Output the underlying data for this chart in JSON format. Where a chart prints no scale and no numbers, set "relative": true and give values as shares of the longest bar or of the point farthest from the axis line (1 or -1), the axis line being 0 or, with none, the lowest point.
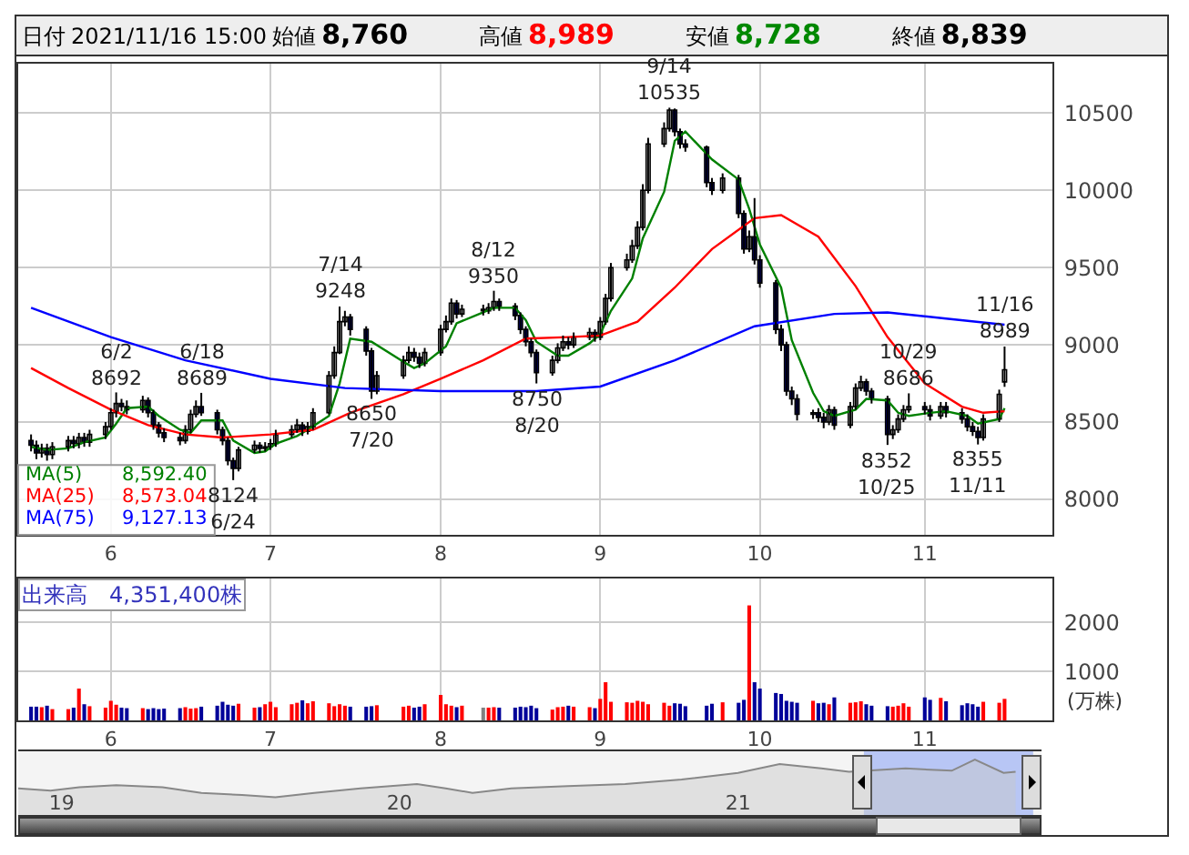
{
  "chart_data": [
    {
      "type": "candlestick",
      "legend": "bottom left",
      "grid": true,
      "colors": [
        "#000099",
        "#000099",
        "#ffffff",
        "#000099",
        "#ffffff",
        "#ffffff",
        "#000099",
        "#ffffff",
        "#000099",
        "#ffffff",
        "#ffffff",
        "#ffffff",
        "#ffffff",
        "#000099",
        "#000099",
        "#ffffff",
        "#000099",
        "#000099",
        "#000099",
        "#000099",
        "#000099",
        "#ffffff",
        "#ffffff",
        "#ffffff",
        "#000099",
        "#000099",
        "#000099",
        "#000099",
        "#000099",
        "#ffffff",
        "#ffffff",
        "#000099",
        "#ffffff",
        "#ffffff",
        "#ffffff",
        "#ffffff",
        "#ffffff",
        "#000099",
        "#ffffff",
        "#ffffff",
        "#ffffff",
        "#ffffff",
        "#ffffff",
        "#ffffff",
        "#000099",
        "#000099",
        "#000099",
        "#ffffff",
        "#ffffff",
        "#ffffff",
        "#000099",
        "#000099",
        "#ffffff",
        "#ffffff",
        "#ffffff",
        "#ffffff",
        "#000099",
        "#ffffff",
        "#000099",
        "#ffffff",
        "#ffffff",
        "#000099",
        "#000099",
        "#000099",
        "#000099",
        "#000099",
        "#000099",
        "#ffffff",
        "#ffffff",
        "#ffffff",
        "#000099",
        "#ffffff",
        "#ffffff",
        "#000099",
        "#ffffff",
        "#ffffff",
        "#ffffff",
        "#ffffff",
        "#ffffff",
        "#ffffff",
        "#ffffff",
        "#ffffff",
        "#ffffff",
        "#ffffff",
        "#000099",
        "#000099",
        "#000099",
        "#000099",
        "#000099",
        "#ffffff",
        "#000099",
        "#000099",
        "#ffffff",
        "#000099",
        "#000099",
        "#000099",
        "#000099",
        "#000099",
        "#000099",
        "#000099",
        "#ffffff",
        "#000099",
        "#000099",
        "#ffffff",
        "#000099",
        "#ffffff",
        "#ffffff",
        "#ffffff",
        "#000099",
        "#000099",
        "#000099",
        "#ffffff",
        "#ffffff",
        "#ffffff",
        "#ffffff",
        "#000099",
        "#000099",
        "#ffffff",
        "#000099",
        "#000099",
        "#000099",
        "#000099",
        "#000099",
        "#ffffff",
        "#ffffff",
        "#ffffff"
      ],
      "x": [
        "2021-05-17",
        "2021-05-18",
        "2021-05-19",
        "2021-05-20",
        "2021-05-21",
        "2021-05-24",
        "2021-05-25",
        "2021-05-26",
        "2021-05-27",
        "2021-05-28",
        "2021-05-31",
        "2021-06-01",
        "2021-06-02",
        "2021-06-03",
        "2021-06-04",
        "2021-06-07",
        "2021-06-08",
        "2021-06-09",
        "2021-06-10",
        "2021-06-11",
        "2021-06-14",
        "2021-06-15",
        "2021-06-16",
        "2021-06-17",
        "2021-06-18",
        "2021-06-21",
        "2021-06-22",
        "2021-06-23",
        "2021-06-24",
        "2021-06-25",
        "2021-06-28",
        "2021-06-29",
        "2021-06-30",
        "2021-07-01",
        "2021-07-02",
        "2021-07-05",
        "2021-07-06",
        "2021-07-07",
        "2021-07-08",
        "2021-07-09",
        "2021-07-12",
        "2021-07-13",
        "2021-07-14",
        "2021-07-15",
        "2021-07-16",
        "2021-07-19",
        "2021-07-20",
        "2021-07-21",
        "2021-07-26",
        "2021-07-27",
        "2021-07-28",
        "2021-07-29",
        "2021-07-30",
        "2021-08-02",
        "2021-08-03",
        "2021-08-04",
        "2021-08-05",
        "2021-08-06",
        "2021-08-10",
        "2021-08-11",
        "2021-08-12",
        "2021-08-13",
        "2021-08-16",
        "2021-08-17",
        "2021-08-18",
        "2021-08-19",
        "2021-08-20",
        "2021-08-23",
        "2021-08-24",
        "2021-08-25",
        "2021-08-26",
        "2021-08-27",
        "2021-08-30",
        "2021-08-31",
        "2021-09-01",
        "2021-09-02",
        "2021-09-03",
        "2021-09-06",
        "2021-09-07",
        "2021-09-08",
        "2021-09-09",
        "2021-09-10",
        "2021-09-13",
        "2021-09-14",
        "2021-09-15",
        "2021-09-16",
        "2021-09-17",
        "2021-09-21",
        "2021-09-22",
        "2021-09-24",
        "2021-09-27",
        "2021-09-28",
        "2021-09-29",
        "2021-09-30",
        "2021-10-01",
        "2021-10-04",
        "2021-10-05",
        "2021-10-06",
        "2021-10-07",
        "2021-10-08",
        "2021-10-11",
        "2021-10-12",
        "2021-10-13",
        "2021-10-14",
        "2021-10-15",
        "2021-10-18",
        "2021-10-19",
        "2021-10-20",
        "2021-10-21",
        "2021-10-22",
        "2021-10-25",
        "2021-10-26",
        "2021-10-27",
        "2021-10-28",
        "2021-10-29",
        "2021-11-01",
        "2021-11-02",
        "2021-11-04",
        "2021-11-05",
        "2021-11-08",
        "2021-11-09",
        "2021-11-10",
        "2021-11-11",
        "2021-11-12",
        "2021-11-15",
        "2021-11-16"
      ],
      "ohlc": [
        [
          8380,
          8420,
          8310,
          8350
        ],
        [
          8350,
          8380,
          8260,
          8300
        ],
        [
          8300,
          8360,
          8270,
          8330
        ],
        [
          8330,
          8360,
          8250,
          8290
        ],
        [
          8290,
          8370,
          8260,
          8340
        ],
        [
          8340,
          8410,
          8310,
          8380
        ],
        [
          8380,
          8410,
          8330,
          8360
        ],
        [
          8360,
          8430,
          8330,
          8400
        ],
        [
          8400,
          8430,
          8340,
          8370
        ],
        [
          8370,
          8450,
          8340,
          8420
        ],
        [
          8420,
          8500,
          8390,
          8470
        ],
        [
          8470,
          8590,
          8450,
          8560
        ],
        [
          8560,
          8692,
          8530,
          8620
        ],
        [
          8620,
          8650,
          8570,
          8600
        ],
        [
          8600,
          8640,
          8550,
          8580
        ],
        [
          8580,
          8670,
          8560,
          8640
        ],
        [
          8640,
          8660,
          8530,
          8560
        ],
        [
          8560,
          8580,
          8450,
          8480
        ],
        [
          8480,
          8500,
          8400,
          8430
        ],
        [
          8430,
          8460,
          8370,
          8400
        ],
        [
          8400,
          8430,
          8350,
          8380
        ],
        [
          8380,
          8480,
          8360,
          8450
        ],
        [
          8450,
          8580,
          8430,
          8550
        ],
        [
          8550,
          8640,
          8530,
          8600
        ],
        [
          8600,
          8689,
          8540,
          8560
        ],
        [
          8560,
          8580,
          8420,
          8450
        ],
        [
          8450,
          8470,
          8350,
          8380
        ],
        [
          8380,
          8400,
          8220,
          8250
        ],
        [
          8250,
          8270,
          8124,
          8200
        ],
        [
          8200,
          8340,
          8180,
          8320
        ],
        [
          8320,
          8380,
          8300,
          8350
        ],
        [
          8350,
          8370,
          8300,
          8330
        ],
        [
          8330,
          8370,
          8310,
          8340
        ],
        [
          8340,
          8390,
          8320,
          8360
        ],
        [
          8360,
          8450,
          8340,
          8420
        ],
        [
          8420,
          8480,
          8400,
          8450
        ],
        [
          8450,
          8520,
          8430,
          8480
        ],
        [
          8480,
          8500,
          8410,
          8440
        ],
        [
          8440,
          8500,
          8420,
          8470
        ],
        [
          8470,
          8590,
          8450,
          8560
        ],
        [
          8560,
          8830,
          8550,
          8800
        ],
        [
          8800,
          8990,
          8780,
          8950
        ],
        [
          8950,
          9248,
          8940,
          9150
        ],
        [
          9150,
          9220,
          9120,
          9180
        ],
        [
          9180,
          9200,
          9060,
          9100
        ],
        [
          9100,
          9120,
          8930,
          8960
        ],
        [
          8960,
          8980,
          8650,
          8700
        ],
        [
          8700,
          8830,
          8680,
          8800
        ],
        [
          8800,
          8930,
          8780,
          8900
        ],
        [
          8900,
          8990,
          8880,
          8950
        ],
        [
          8950,
          8980,
          8890,
          8920
        ],
        [
          8920,
          8950,
          8850,
          8880
        ],
        [
          8880,
          8980,
          8860,
          8950
        ],
        [
          8950,
          9130,
          8930,
          9100
        ],
        [
          9100,
          9190,
          9080,
          9150
        ],
        [
          9150,
          9300,
          9130,
          9270
        ],
        [
          9270,
          9290,
          9170,
          9200
        ],
        [
          9200,
          9260,
          9180,
          9230
        ],
        [
          9230,
          9260,
          9190,
          9220
        ],
        [
          9220,
          9270,
          9200,
          9240
        ],
        [
          9240,
          9350,
          9220,
          9280
        ],
        [
          9280,
          9300,
          9220,
          9250
        ],
        [
          9250,
          9270,
          9160,
          9190
        ],
        [
          9190,
          9210,
          9070,
          9100
        ],
        [
          9100,
          9120,
          8990,
          9020
        ],
        [
          9020,
          9040,
          8920,
          8950
        ],
        [
          8950,
          8970,
          8750,
          8820
        ],
        [
          8820,
          8930,
          8800,
          8900
        ],
        [
          8900,
          9010,
          8880,
          8980
        ],
        [
          8980,
          9060,
          8960,
          9020
        ],
        [
          9020,
          9050,
          8970,
          9000
        ],
        [
          9000,
          9080,
          8980,
          9050
        ],
        [
          9050,
          9110,
          9030,
          9080
        ],
        [
          9080,
          9100,
          9020,
          9050
        ],
        [
          9050,
          9180,
          9030,
          9150
        ],
        [
          9150,
          9330,
          9130,
          9300
        ],
        [
          9300,
          9530,
          9280,
          9500
        ],
        [
          9500,
          9590,
          9480,
          9550
        ],
        [
          9550,
          9680,
          9530,
          9640
        ],
        [
          9640,
          9800,
          9620,
          9760
        ],
        [
          9760,
          10040,
          9740,
          10000
        ],
        [
          10000,
          10340,
          9980,
          10300
        ],
        [
          10300,
          10440,
          10280,
          10400
        ],
        [
          10400,
          10535,
          10380,
          10520
        ],
        [
          10520,
          10530,
          10350,
          10380
        ],
        [
          10380,
          10400,
          10270,
          10300
        ],
        [
          10300,
          10330,
          10250,
          10280
        ],
        [
          10280,
          10290,
          10020,
          10050
        ],
        [
          10050,
          10080,
          9970,
          10000
        ],
        [
          10000,
          10110,
          9980,
          10080
        ],
        [
          10080,
          10100,
          9820,
          9850
        ],
        [
          9850,
          9870,
          9590,
          9620
        ],
        [
          9620,
          9740,
          9600,
          9700
        ],
        [
          9700,
          9950,
          9520,
          9550
        ],
        [
          9550,
          9580,
          9370,
          9400
        ],
        [
          9400,
          9420,
          9070,
          9100
        ],
        [
          9100,
          9130,
          8960,
          9000
        ],
        [
          9000,
          9020,
          8670,
          8700
        ],
        [
          8700,
          8730,
          8610,
          8650
        ],
        [
          8650,
          8680,
          8510,
          8550
        ],
        [
          8550,
          8580,
          8520,
          8560
        ],
        [
          8560,
          8590,
          8500,
          8530
        ],
        [
          8530,
          8560,
          8460,
          8500
        ],
        [
          8500,
          8610,
          8480,
          8580
        ],
        [
          8580,
          8600,
          8450,
          8480
        ],
        [
          8480,
          8630,
          8460,
          8600
        ],
        [
          8600,
          8750,
          8580,
          8720
        ],
        [
          8720,
          8800,
          8700,
          8760
        ],
        [
          8760,
          8780,
          8670,
          8700
        ],
        [
          8700,
          8720,
          8620,
          8650
        ],
        [
          8650,
          8670,
          8352,
          8420
        ],
        [
          8420,
          8480,
          8390,
          8450
        ],
        [
          8450,
          8550,
          8430,
          8520
        ],
        [
          8520,
          8610,
          8500,
          8580
        ],
        [
          8580,
          8686,
          8560,
          8600
        ],
        [
          8600,
          8630,
          8550,
          8580
        ],
        [
          8580,
          8610,
          8510,
          8540
        ],
        [
          8540,
          8630,
          8520,
          8600
        ],
        [
          8600,
          8630,
          8530,
          8560
        ],
        [
          8560,
          8590,
          8490,
          8520
        ],
        [
          8520,
          8550,
          8440,
          8470
        ],
        [
          8470,
          8500,
          8410,
          8440
        ],
        [
          8440,
          8470,
          8355,
          8400
        ],
        [
          8400,
          8550,
          8380,
          8520
        ],
        [
          8520,
          8710,
          8500,
          8680
        ],
        [
          8760,
          8989,
          8728,
          8839
        ]
      ],
      "series": [
        {
          "name": "MA(5)",
          "type": "line",
          "color": "#008000",
          "x": [
            "2021-05-17",
            "2021-05-20",
            "2021-05-24",
            "2021-05-27",
            "2021-05-31",
            "2021-06-02",
            "2021-06-04",
            "2021-06-08",
            "2021-06-10",
            "2021-06-14",
            "2021-06-16",
            "2021-06-18",
            "2021-06-22",
            "2021-06-24",
            "2021-06-28",
            "2021-06-30",
            "2021-07-02",
            "2021-07-06",
            "2021-07-08",
            "2021-07-12",
            "2021-07-14",
            "2021-07-16",
            "2021-07-20",
            "2021-07-26",
            "2021-07-28",
            "2021-07-30",
            "2021-08-03",
            "2021-08-05",
            "2021-08-10",
            "2021-08-12",
            "2021-08-16",
            "2021-08-18",
            "2021-08-20",
            "2021-08-24",
            "2021-08-26",
            "2021-08-30",
            "2021-09-01",
            "2021-09-03",
            "2021-09-07",
            "2021-09-09",
            "2021-09-13",
            "2021-09-15",
            "2021-09-17",
            "2021-09-22",
            "2021-09-27",
            "2021-09-29",
            "2021-10-01",
            "2021-10-05",
            "2021-10-07",
            "2021-10-11",
            "2021-10-13",
            "2021-10-15",
            "2021-10-19",
            "2021-10-21",
            "2021-10-25",
            "2021-10-27",
            "2021-10-29",
            "2021-11-02",
            "2021-11-05",
            "2021-11-09",
            "2021-11-11",
            "2021-11-15",
            "2021-11-16"
          ],
          "values": [
            8340,
            8320,
            8330,
            8370,
            8400,
            8490,
            8590,
            8600,
            8540,
            8450,
            8430,
            8510,
            8510,
            8380,
            8300,
            8310,
            8360,
            8410,
            8450,
            8540,
            8750,
            9040,
            9020,
            8890,
            8850,
            8880,
            8990,
            9140,
            9210,
            9240,
            9240,
            9160,
            9020,
            8930,
            8930,
            9010,
            9070,
            9220,
            9430,
            9690,
            9990,
            10320,
            10380,
            10200,
            10070,
            9880,
            9650,
            9370,
            9030,
            8690,
            8570,
            8540,
            8580,
            8650,
            8640,
            8560,
            8540,
            8560,
            8570,
            8540,
            8490,
            8520,
            8590
          ]
        },
        {
          "name": "MA(25)",
          "type": "line",
          "color": "#ff0000",
          "x": [
            "2021-05-17",
            "2021-05-24",
            "2021-06-01",
            "2021-06-08",
            "2021-06-15",
            "2021-06-22",
            "2021-07-01",
            "2021-07-09",
            "2021-07-16",
            "2021-07-26",
            "2021-08-02",
            "2021-08-10",
            "2021-08-18",
            "2021-08-26",
            "2021-09-01",
            "2021-09-08",
            "2021-09-15",
            "2021-09-22",
            "2021-09-30",
            "2021-10-05",
            "2021-10-12",
            "2021-10-19",
            "2021-10-25",
            "2021-11-01",
            "2021-11-08",
            "2021-11-12",
            "2021-11-16"
          ],
          "values": [
            8850,
            8720,
            8580,
            8480,
            8420,
            8400,
            8420,
            8450,
            8560,
            8680,
            8780,
            8900,
            9040,
            9050,
            9060,
            9150,
            9370,
            9620,
            9820,
            9840,
            9700,
            9380,
            9050,
            8750,
            8600,
            8560,
            8570
          ]
        },
        {
          "name": "MA(75)",
          "type": "line",
          "color": "#0000ff",
          "x": [
            "2021-05-17",
            "2021-06-01",
            "2021-06-15",
            "2021-07-01",
            "2021-07-15",
            "2021-08-02",
            "2021-08-20",
            "2021-09-01",
            "2021-09-15",
            "2021-09-30",
            "2021-10-15",
            "2021-10-25",
            "2021-11-05",
            "2021-11-16"
          ],
          "values": [
            9240,
            9050,
            8900,
            8780,
            8720,
            8700,
            8700,
            8730,
            8900,
            9120,
            9200,
            9210,
            9170,
            9130
          ]
        }
      ],
      "xlim": [
        "2021-05-14T14:00",
        "2021-11-25"
      ],
      "xticks": [
        {
          "value": "2021-06-01",
          "label": "6"
        },
        {
          "value": "2021-07-01",
          "label": "7"
        },
        {
          "value": "2021-08-02",
          "label": "8"
        },
        {
          "value": "2021-09-01",
          "label": "9"
        },
        {
          "value": "2021-10-01",
          "label": "10"
        },
        {
          "value": "2021-11-01",
          "label": "11"
        }
      ],
      "ylim": [
        7770,
        10820
      ],
      "yticks": [
        8000,
        8500,
        9000,
        9500,
        10000,
        10500
      ],
      "annotations": [
        "日付",
        "2021/11/16 15:00",
        "始値",
        "8,760",
        "高値",
        "8,989",
        "安値",
        "8,728",
        "終値",
        "8,839",
        {
          "text": "6/2\n8692",
          "x": "2021-06-02",
          "y": 8692
        },
        {
          "text": "6/18\n8689",
          "x": "2021-06-18",
          "y": 8689
        },
        {
          "text": "8124\n6/24",
          "x": "2021-06-24",
          "y": 8124
        },
        {
          "text": "7/14\n9248",
          "x": "2021-07-14",
          "y": 9248
        },
        {
          "text": "8650\n7/20",
          "x": "2021-07-20",
          "y": 8650
        },
        {
          "text": "8/12\n9350",
          "x": "2021-08-12",
          "y": 9350
        },
        {
          "text": "8750\n8/20",
          "x": "2021-08-20",
          "y": 8750
        },
        {
          "text": "9/14\n10535",
          "x": "2021-09-14",
          "y": 10535
        },
        {
          "text": "8352\n10/25",
          "x": "2021-10-25",
          "y": 8352
        },
        {
          "text": "10/29\n8686",
          "x": "2021-10-29",
          "y": 8686
        },
        {
          "text": "8355\n11/11",
          "x": "2021-11-11",
          "y": 8355
        },
        {
          "text": "11/16\n8989",
          "x": "2021-11-16",
          "y": 8989
        },
        "8,592.40",
        "8,573.04",
        "9,127.13"
      ]
    },
    {
      "type": "bar",
      "title": "出来高　4,351,400株",
      "ylabel": "(万株)",
      "grid": true,
      "x": [
        "2021-05-17",
        "2021-05-18",
        "2021-05-19",
        "2021-05-20",
        "2021-05-21",
        "2021-05-24",
        "2021-05-25",
        "2021-05-26",
        "2021-05-27",
        "2021-05-28",
        "2021-05-31",
        "2021-06-01",
        "2021-06-02",
        "2021-06-03",
        "2021-06-04",
        "2021-06-07",
        "2021-06-08",
        "2021-06-09",
        "2021-06-10",
        "2021-06-11",
        "2021-06-14",
        "2021-06-15",
        "2021-06-16",
        "2021-06-17",
        "2021-06-18",
        "2021-06-21",
        "2021-06-22",
        "2021-06-23",
        "2021-06-24",
        "2021-06-25",
        "2021-06-28",
        "2021-06-29",
        "2021-06-30",
        "2021-07-01",
        "2021-07-02",
        "2021-07-05",
        "2021-07-06",
        "2021-07-07",
        "2021-07-08",
        "2021-07-09",
        "2021-07-12",
        "2021-07-13",
        "2021-07-14",
        "2021-07-15",
        "2021-07-16",
        "2021-07-19",
        "2021-07-20",
        "2021-07-21",
        "2021-07-26",
        "2021-07-27",
        "2021-07-28",
        "2021-07-29",
        "2021-07-30",
        "2021-08-02",
        "2021-08-03",
        "2021-08-04",
        "2021-08-05",
        "2021-08-06",
        "2021-08-10",
        "2021-08-11",
        "2021-08-12",
        "2021-08-13",
        "2021-08-16",
        "2021-08-17",
        "2021-08-18",
        "2021-08-19",
        "2021-08-20",
        "2021-08-23",
        "2021-08-24",
        "2021-08-25",
        "2021-08-26",
        "2021-08-27",
        "2021-08-30",
        "2021-08-31",
        "2021-09-01",
        "2021-09-02",
        "2021-09-03",
        "2021-09-06",
        "2021-09-07",
        "2021-09-08",
        "2021-09-09",
        "2021-09-10",
        "2021-09-13",
        "2021-09-14",
        "2021-09-15",
        "2021-09-16",
        "2021-09-17",
        "2021-09-21",
        "2021-09-22",
        "2021-09-24",
        "2021-09-27",
        "2021-09-28",
        "2021-09-29",
        "2021-09-30",
        "2021-10-01",
        "2021-10-04",
        "2021-10-05",
        "2021-10-06",
        "2021-10-07",
        "2021-10-08",
        "2021-10-11",
        "2021-10-12",
        "2021-10-13",
        "2021-10-14",
        "2021-10-15",
        "2021-10-18",
        "2021-10-19",
        "2021-10-20",
        "2021-10-21",
        "2021-10-22",
        "2021-10-25",
        "2021-10-26",
        "2021-10-27",
        "2021-10-28",
        "2021-10-29",
        "2021-11-01",
        "2021-11-02",
        "2021-11-04",
        "2021-11-05",
        "2021-11-08",
        "2021-11-09",
        "2021-11-10",
        "2021-11-11",
        "2021-11-12",
        "2021-11-15",
        "2021-11-16"
      ],
      "values": [
        280,
        280,
        270,
        300,
        230,
        230,
        260,
        650,
        330,
        290,
        260,
        400,
        320,
        260,
        250,
        250,
        230,
        250,
        230,
        240,
        250,
        270,
        240,
        250,
        280,
        300,
        380,
        320,
        300,
        340,
        260,
        270,
        330,
        380,
        270,
        330,
        360,
        410,
        350,
        390,
        350,
        290,
        330,
        300,
        280,
        280,
        290,
        310,
        280,
        300,
        260,
        280,
        330,
        520,
        330,
        300,
        270,
        300,
        260,
        260,
        270,
        260,
        260,
        280,
        270,
        300,
        250,
        220,
        270,
        280,
        300,
        280,
        270,
        250,
        440,
        780,
        380,
        370,
        360,
        400,
        380,
        330,
        360,
        300,
        350,
        340,
        290,
        300,
        340,
        370,
        360,
        420,
        2350,
        780,
        650,
        560,
        540,
        400,
        380,
        360,
        400,
        350,
        360,
        330,
        470,
        360,
        370,
        390,
        330,
        300,
        290,
        280,
        300,
        350,
        280,
        470,
        420,
        460,
        390,
        310,
        350,
        330,
        280,
        380,
        360,
        440
      ],
      "colors": [
        "#000099",
        "#000099",
        "#ff0000",
        "#000099",
        "#ff0000",
        "#ff0000",
        "#000099",
        "#ff0000",
        "#000099",
        "#ff0000",
        "#ff0000",
        "#ff0000",
        "#ff0000",
        "#000099",
        "#000099",
        "#ff0000",
        "#000099",
        "#000099",
        "#000099",
        "#000099",
        "#000099",
        "#ff0000",
        "#ff0000",
        "#ff0000",
        "#000099",
        "#000099",
        "#000099",
        "#000099",
        "#000099",
        "#ff0000",
        "#ff0000",
        "#000099",
        "#ff0000",
        "#ff0000",
        "#ff0000",
        "#ff0000",
        "#ff0000",
        "#000099",
        "#ff0000",
        "#ff0000",
        "#ff0000",
        "#ff0000",
        "#ff0000",
        "#ff0000",
        "#000099",
        "#000099",
        "#000099",
        "#ff0000",
        "#ff0000",
        "#ff0000",
        "#000099",
        "#000099",
        "#ff0000",
        "#ff0000",
        "#ff0000",
        "#ff0000",
        "#000099",
        "#ff0000",
        "#808080",
        "#ff0000",
        "#ff0000",
        "#000099",
        "#000099",
        "#000099",
        "#000099",
        "#000099",
        "#000099",
        "#ff0000",
        "#ff0000",
        "#ff0000",
        "#000099",
        "#ff0000",
        "#ff0000",
        "#000099",
        "#ff0000",
        "#ff0000",
        "#ff0000",
        "#ff0000",
        "#ff0000",
        "#ff0000",
        "#ff0000",
        "#ff0000",
        "#ff0000",
        "#ff0000",
        "#000099",
        "#000099",
        "#000099",
        "#000099",
        "#000099",
        "#ff0000",
        "#000099",
        "#000099",
        "#ff0000",
        "#000099",
        "#000099",
        "#000099",
        "#000099",
        "#000099",
        "#000099",
        "#000099",
        "#ff0000",
        "#000099",
        "#000099",
        "#ff0000",
        "#000099",
        "#ff0000",
        "#ff0000",
        "#ff0000",
        "#000099",
        "#000099",
        "#000099",
        "#ff0000",
        "#ff0000",
        "#ff0000",
        "#ff0000",
        "#000099",
        "#000099",
        "#ff0000",
        "#000099",
        "#000099",
        "#000099",
        "#000099",
        "#000099",
        "#ff0000",
        "#ff0000",
        "#ff0000"
      ],
      "xlim": [
        "2021-05-14T14:00",
        "2021-11-25"
      ],
      "xticks": [
        {
          "value": "2021-06-01",
          "label": "6"
        },
        {
          "value": "2021-07-01",
          "label": "7"
        },
        {
          "value": "2021-08-02",
          "label": "8"
        },
        {
          "value": "2021-09-01",
          "label": "9"
        },
        {
          "value": "2021-10-01",
          "label": "10"
        },
        {
          "value": "2021-11-01",
          "label": "11"
        }
      ],
      "ylim": [
        0,
        2900
      ],
      "yticks": [
        1000,
        2000
      ]
    },
    {
      "type": "area",
      "relative": true,
      "color": "#888888",
      "tick_labels": "x",
      "x": [
        "2018-11-15",
        "2018-12-20",
        "2019-01-20",
        "2019-03-01",
        "2019-04-20",
        "2019-06-01",
        "2019-07-15",
        "2019-08-20",
        "2019-10-01",
        "2019-11-20",
        "2020-01-20",
        "2020-02-20",
        "2020-03-20",
        "2020-05-01",
        "2020-07-01",
        "2020-09-01",
        "2020-11-01",
        "2021-01-01",
        "2021-02-15",
        "2021-04-01",
        "2021-05-01",
        "2021-07-01",
        "2021-08-20",
        "2021-09-14",
        "2021-10-15",
        "2021-10-28"
      ],
      "values": [
        0.48,
        0.44,
        0.5,
        0.54,
        0.5,
        0.4,
        0.36,
        0.32,
        0.4,
        0.48,
        0.56,
        0.48,
        0.4,
        0.48,
        0.52,
        0.56,
        0.64,
        0.76,
        0.92,
        0.84,
        0.78,
        0.84,
        0.8,
        1,
        0.76,
        0.78
      ],
      "xlim": [
        "2018-11-15",
        "2021-11-25"
      ],
      "xticks": [
        {
          "value": "2019-01-01",
          "label": "19"
        },
        {
          "value": "2020-01-01",
          "label": "20"
        },
        {
          "value": "2021-01-01",
          "label": "21"
        }
      ],
      "bands": [
        {
          "axis": "x",
          "from": "2021-05-17",
          "to": "2021-11-16",
          "color": "#b8c6f5"
        }
      ]
    }
  ]
}
